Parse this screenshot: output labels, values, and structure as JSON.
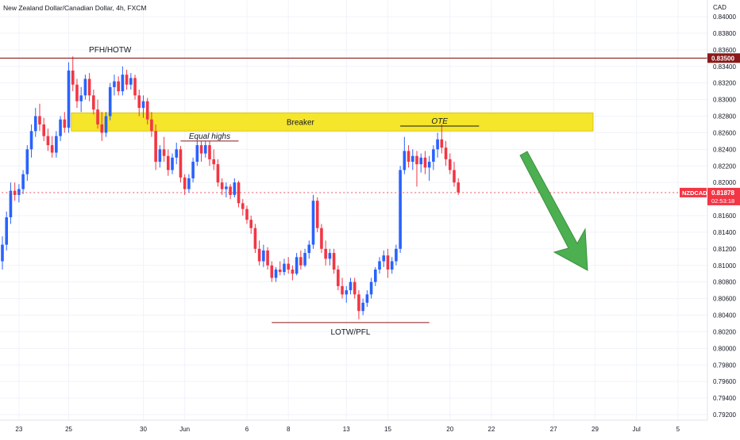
{
  "chart_data": {
    "type": "candlestick",
    "title": "New Zealand Dollar/Canadian Dollar, 4h, FXCM",
    "currency": "CAD",
    "ylim": [
      0.791,
      0.8435
    ],
    "y_ticks": [
      "0.84000",
      "0.83800",
      "0.83600",
      "0.83400",
      "0.83200",
      "0.83000",
      "0.82800",
      "0.82600",
      "0.82400",
      "0.82200",
      "0.82000",
      "0.81800",
      "0.81600",
      "0.81400",
      "0.81200",
      "0.81000",
      "0.80800",
      "0.80600",
      "0.80400",
      "0.80200",
      "0.80000",
      "0.79800",
      "0.79600",
      "0.79400",
      "0.79200"
    ],
    "x_labels": [
      {
        "label": "23",
        "idx": 4
      },
      {
        "label": "25",
        "idx": 16
      },
      {
        "label": "30",
        "idx": 34
      },
      {
        "label": "Jun",
        "idx": 44
      },
      {
        "label": "6",
        "idx": 59
      },
      {
        "label": "8",
        "idx": 69
      },
      {
        "label": "13",
        "idx": 83
      },
      {
        "label": "15",
        "idx": 93
      },
      {
        "label": "20",
        "idx": 108
      },
      {
        "label": "22",
        "idx": 118
      },
      {
        "label": "27",
        "idx": 133
      },
      {
        "label": "29",
        "idx": 143
      },
      {
        "label": "Jul",
        "idx": 153
      },
      {
        "label": "5",
        "idx": 163
      }
    ],
    "candles": [
      [
        0.8105,
        0.8135,
        0.8095,
        0.8125
      ],
      [
        0.8125,
        0.8165,
        0.8118,
        0.8158
      ],
      [
        0.8158,
        0.82,
        0.815,
        0.819
      ],
      [
        0.819,
        0.82,
        0.8178,
        0.8185
      ],
      [
        0.8185,
        0.8198,
        0.8176,
        0.8192
      ],
      [
        0.8192,
        0.8215,
        0.8186,
        0.821
      ],
      [
        0.821,
        0.8245,
        0.8202,
        0.824
      ],
      [
        0.824,
        0.827,
        0.823,
        0.8262
      ],
      [
        0.8262,
        0.829,
        0.8255,
        0.828
      ],
      [
        0.828,
        0.8295,
        0.8262,
        0.827
      ],
      [
        0.827,
        0.8278,
        0.825,
        0.8256
      ],
      [
        0.8256,
        0.8265,
        0.8238,
        0.8245
      ],
      [
        0.8245,
        0.8256,
        0.823,
        0.8236
      ],
      [
        0.8236,
        0.8262,
        0.823,
        0.8256
      ],
      [
        0.8256,
        0.828,
        0.825,
        0.8276
      ],
      [
        0.8276,
        0.8285,
        0.826,
        0.8266
      ],
      [
        0.8266,
        0.8345,
        0.826,
        0.8335
      ],
      [
        0.8335,
        0.8352,
        0.831,
        0.8318
      ],
      [
        0.8318,
        0.8325,
        0.829,
        0.8298
      ],
      [
        0.8298,
        0.8315,
        0.8285,
        0.8305
      ],
      [
        0.8305,
        0.833,
        0.83,
        0.8325
      ],
      [
        0.8325,
        0.8332,
        0.8298,
        0.8305
      ],
      [
        0.8305,
        0.8312,
        0.8282,
        0.8288
      ],
      [
        0.8288,
        0.83,
        0.8265,
        0.827
      ],
      [
        0.827,
        0.8285,
        0.825,
        0.826
      ],
      [
        0.826,
        0.8285,
        0.8255,
        0.828
      ],
      [
        0.828,
        0.832,
        0.8275,
        0.8315
      ],
      [
        0.8315,
        0.833,
        0.8305,
        0.8322
      ],
      [
        0.8322,
        0.8328,
        0.8305,
        0.831
      ],
      [
        0.831,
        0.834,
        0.8305,
        0.833
      ],
      [
        0.833,
        0.8336,
        0.8312,
        0.8318
      ],
      [
        0.8318,
        0.8332,
        0.8312,
        0.8326
      ],
      [
        0.8326,
        0.833,
        0.83,
        0.8305
      ],
      [
        0.8305,
        0.8312,
        0.828,
        0.829
      ],
      [
        0.829,
        0.8305,
        0.8278,
        0.8298
      ],
      [
        0.8298,
        0.8302,
        0.827,
        0.8276
      ],
      [
        0.8276,
        0.8285,
        0.8255,
        0.8262
      ],
      [
        0.8262,
        0.827,
        0.8215,
        0.8225
      ],
      [
        0.8225,
        0.8245,
        0.8218,
        0.824
      ],
      [
        0.824,
        0.8255,
        0.8225,
        0.8232
      ],
      [
        0.8232,
        0.824,
        0.8208,
        0.8215
      ],
      [
        0.8215,
        0.8235,
        0.821,
        0.823
      ],
      [
        0.823,
        0.8248,
        0.8222,
        0.824
      ],
      [
        0.824,
        0.8244,
        0.82,
        0.8206
      ],
      [
        0.8206,
        0.821,
        0.8185,
        0.8192
      ],
      [
        0.8192,
        0.821,
        0.8188,
        0.8205
      ],
      [
        0.8205,
        0.823,
        0.82,
        0.8225
      ],
      [
        0.8225,
        0.825,
        0.822,
        0.8245
      ],
      [
        0.8245,
        0.825,
        0.8225,
        0.8235
      ],
      [
        0.8235,
        0.825,
        0.823,
        0.8245
      ],
      [
        0.8245,
        0.825,
        0.822,
        0.8228
      ],
      [
        0.8228,
        0.824,
        0.8215,
        0.8222
      ],
      [
        0.8222,
        0.8228,
        0.8195,
        0.82
      ],
      [
        0.82,
        0.8205,
        0.8185,
        0.8192
      ],
      [
        0.8192,
        0.82,
        0.8182,
        0.8195
      ],
      [
        0.8195,
        0.8198,
        0.818,
        0.8185
      ],
      [
        0.8185,
        0.8205,
        0.8182,
        0.82
      ],
      [
        0.82,
        0.8202,
        0.817,
        0.8175
      ],
      [
        0.8175,
        0.818,
        0.816,
        0.8168
      ],
      [
        0.8168,
        0.8172,
        0.815,
        0.8155
      ],
      [
        0.8155,
        0.816,
        0.8138,
        0.8145
      ],
      [
        0.8145,
        0.815,
        0.8115,
        0.812
      ],
      [
        0.812,
        0.813,
        0.81,
        0.8105
      ],
      [
        0.8105,
        0.8125,
        0.8098,
        0.8118
      ],
      [
        0.8118,
        0.8122,
        0.8095,
        0.81
      ],
      [
        0.81,
        0.8105,
        0.808,
        0.8085
      ],
      [
        0.8085,
        0.8098,
        0.808,
        0.8095
      ],
      [
        0.8095,
        0.8105,
        0.8088,
        0.8092
      ],
      [
        0.8092,
        0.8108,
        0.8088,
        0.8102
      ],
      [
        0.8102,
        0.811,
        0.809,
        0.8095
      ],
      [
        0.8095,
        0.81,
        0.8082,
        0.809
      ],
      [
        0.809,
        0.8115,
        0.8088,
        0.811
      ],
      [
        0.811,
        0.8118,
        0.8095,
        0.81
      ],
      [
        0.81,
        0.812,
        0.8098,
        0.8115
      ],
      [
        0.8115,
        0.813,
        0.8108,
        0.8125
      ],
      [
        0.8125,
        0.8185,
        0.812,
        0.8178
      ],
      [
        0.8178,
        0.8182,
        0.814,
        0.8145
      ],
      [
        0.8145,
        0.815,
        0.8115,
        0.812
      ],
      [
        0.812,
        0.813,
        0.81,
        0.8108
      ],
      [
        0.8108,
        0.812,
        0.81,
        0.8115
      ],
      [
        0.8115,
        0.812,
        0.809,
        0.8095
      ],
      [
        0.8095,
        0.81,
        0.807,
        0.8075
      ],
      [
        0.8075,
        0.8085,
        0.806,
        0.8065
      ],
      [
        0.8065,
        0.8075,
        0.8055,
        0.807
      ],
      [
        0.807,
        0.8085,
        0.8065,
        0.808
      ],
      [
        0.808,
        0.8085,
        0.806,
        0.8065
      ],
      [
        0.8065,
        0.807,
        0.8035,
        0.8045
      ],
      [
        0.8045,
        0.806,
        0.804,
        0.8055
      ],
      [
        0.8055,
        0.807,
        0.805,
        0.8065
      ],
      [
        0.8065,
        0.8085,
        0.806,
        0.808
      ],
      [
        0.808,
        0.8098,
        0.8075,
        0.8095
      ],
      [
        0.8095,
        0.811,
        0.809,
        0.8105
      ],
      [
        0.8105,
        0.8118,
        0.8098,
        0.8112
      ],
      [
        0.8112,
        0.812,
        0.8085,
        0.8095
      ],
      [
        0.8095,
        0.811,
        0.809,
        0.8105
      ],
      [
        0.8105,
        0.8125,
        0.81,
        0.812
      ],
      [
        0.812,
        0.822,
        0.8115,
        0.8215
      ],
      [
        0.8215,
        0.8255,
        0.821,
        0.8238
      ],
      [
        0.8238,
        0.8245,
        0.8218,
        0.8225
      ],
      [
        0.8225,
        0.824,
        0.8215,
        0.8232
      ],
      [
        0.8232,
        0.8238,
        0.8195,
        0.8222
      ],
      [
        0.8222,
        0.8235,
        0.8212,
        0.823
      ],
      [
        0.823,
        0.8238,
        0.821,
        0.8218
      ],
      [
        0.8218,
        0.8232,
        0.8202,
        0.8225
      ],
      [
        0.8225,
        0.8245,
        0.8215,
        0.824
      ],
      [
        0.824,
        0.826,
        0.823,
        0.8252
      ],
      [
        0.8252,
        0.827,
        0.8235,
        0.8242
      ],
      [
        0.8242,
        0.825,
        0.822,
        0.8228
      ],
      [
        0.8228,
        0.8235,
        0.821,
        0.8215
      ],
      [
        0.8215,
        0.8225,
        0.8195,
        0.82
      ],
      [
        0.82,
        0.8205,
        0.8185,
        0.8188
      ]
    ],
    "current_price": {
      "label": "NZDCAD",
      "value": "0.81878",
      "countdown": "02:53:18",
      "price": 0.81878
    },
    "highlight_level": {
      "value": "0.83500",
      "price": 0.835
    },
    "zones": [
      {
        "label": "Breaker",
        "top": 0.8284,
        "bottom": 0.8262,
        "start_idx": 17,
        "end_idx": 130,
        "color": "#f5e52b"
      }
    ],
    "levels": [
      {
        "label": "Equal highs",
        "price": 0.825,
        "start_idx": 43,
        "end_idx": 57
      },
      {
        "label": "OTE",
        "price": 0.8268,
        "start_idx": 96,
        "end_idx": 115
      },
      {
        "label": "LOTW/PFL",
        "price": 0.8031,
        "start_idx": 65,
        "end_idx": 103
      }
    ],
    "annotations": [
      {
        "label": "PFH/HOTW",
        "price": 0.8357,
        "idx": 26
      }
    ],
    "colors": {
      "up": "#2962ff",
      "down": "#f23645",
      "level_line": "#8b1a1a",
      "price_line": "#e04050",
      "arrow": "#4caf50"
    }
  }
}
